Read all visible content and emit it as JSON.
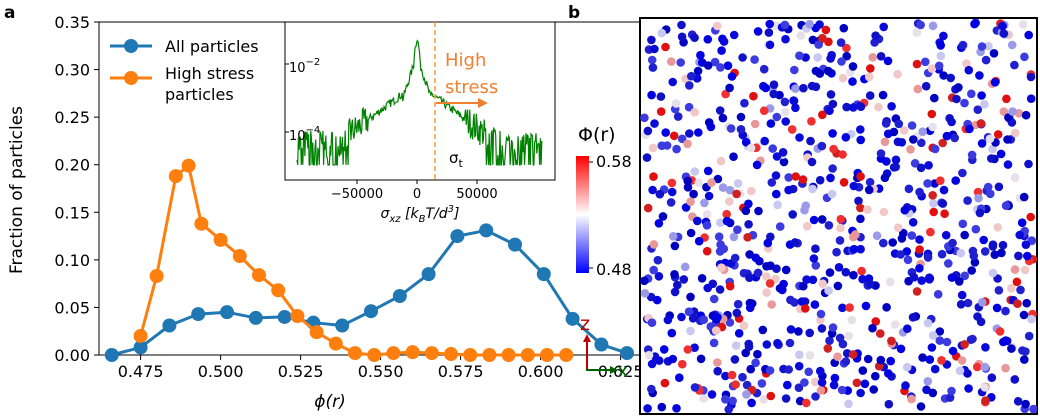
{
  "panel_a": {
    "label": "a",
    "chart_data": {
      "type": "line",
      "xlabel": "ϕ(r)",
      "ylabel": "Fraction of particles",
      "xlim": [
        0.462,
        0.632
      ],
      "ylim": [
        0.0,
        0.35
      ],
      "xticks": [
        0.475,
        0.5,
        0.525,
        0.55,
        0.575,
        0.6,
        0.625
      ],
      "xtick_labels": [
        "0.475",
        "0.500",
        "0.525",
        "0.550",
        "0.575",
        "0.600",
        "0.625"
      ],
      "yticks": [
        0.0,
        0.05,
        0.1,
        0.15,
        0.2,
        0.25,
        0.3,
        0.35
      ],
      "ytick_labels": [
        "0.00",
        "0.05",
        "0.10",
        "0.15",
        "0.20",
        "0.25",
        "0.30",
        "0.35"
      ],
      "legend_position": "top-left",
      "series": [
        {
          "name": "All particles",
          "color": "#1f77b4",
          "x": [
            0.466,
            0.475,
            0.484,
            0.493,
            0.502,
            0.511,
            0.52,
            0.529,
            0.538,
            0.547,
            0.556,
            0.565,
            0.574,
            0.583,
            0.592,
            0.601,
            0.61,
            0.619,
            0.627
          ],
          "values": [
            0.0,
            0.008,
            0.031,
            0.043,
            0.045,
            0.039,
            0.04,
            0.034,
            0.031,
            0.046,
            0.062,
            0.085,
            0.125,
            0.131,
            0.116,
            0.085,
            0.038,
            0.011,
            0.002
          ]
        },
        {
          "name": "High stress particles",
          "legend_lines": [
            "High stress",
            "particles"
          ],
          "color": "#ff7f0e",
          "x": [
            0.475,
            0.48,
            0.486,
            0.49,
            0.494,
            0.5,
            0.506,
            0.512,
            0.518,
            0.524,
            0.53,
            0.536,
            0.542,
            0.548,
            0.554,
            0.56,
            0.566,
            0.572,
            0.578,
            0.584,
            0.59,
            0.596,
            0.602,
            0.608
          ],
          "values": [
            0.02,
            0.083,
            0.188,
            0.199,
            0.138,
            0.121,
            0.104,
            0.084,
            0.068,
            0.041,
            0.024,
            0.012,
            0.002,
            0.0,
            0.002,
            0.003,
            0.002,
            0.001,
            0.0,
            0.0,
            0.0,
            0.0,
            0.0,
            0.0
          ]
        }
      ]
    },
    "inset": {
      "type": "line",
      "series_color": "#008000",
      "xlabel": "σ_xz [k_B T/d³]",
      "xlim": [
        -110000,
        115000
      ],
      "xticks": [
        -50000,
        0,
        50000
      ],
      "xtick_labels": [
        "−50000",
        "0",
        "50000"
      ],
      "ytick_labels": [
        "10",
        "10"
      ],
      "ytick_exponents": [
        "−2",
        "−4"
      ],
      "threshold_label": "σ",
      "threshold_subscript": "t",
      "threshold_x": 15000,
      "threshold_color": "#f0a030",
      "annotation": [
        "High",
        "stress"
      ],
      "annotation_color": "#f08030"
    }
  },
  "panel_b": {
    "label": "b",
    "colorbar_title": "Φ(r)",
    "colorbar_max": "0.58",
    "colorbar_min": "0.48",
    "axis_z": "z",
    "axis_x": "x",
    "axis_z_color": "#c00000",
    "axis_x_color": "#006000"
  }
}
